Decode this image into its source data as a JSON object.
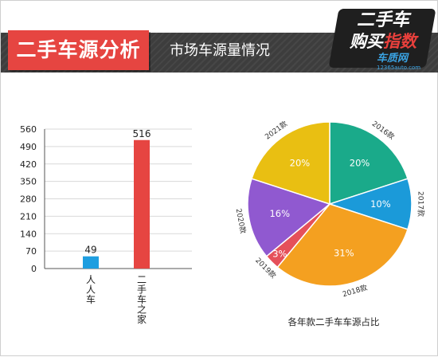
{
  "header": {
    "title": "二手车源分析",
    "subtitle": "市场车源量情况",
    "logo": {
      "line1": "二手车",
      "line2a": "购买",
      "line2b": "指数",
      "brand": "车质网",
      "site": "12365auto.com"
    }
  },
  "colors": {
    "header_band": "#3d3d3d",
    "title_box": "#e64541",
    "bar_renren": "#1e9ee0",
    "bar_esc": "#e64541"
  },
  "chart_data": [
    {
      "type": "bar",
      "categories": [
        "人人车",
        "二手车之家"
      ],
      "values": [
        49,
        516
      ],
      "colors": [
        "#1e9ee0",
        "#e64541"
      ],
      "yticks": [
        0,
        70,
        140,
        210,
        280,
        350,
        420,
        490,
        560
      ],
      "ylim": [
        0,
        560
      ],
      "grid": true,
      "data_labels": [
        "49",
        "516"
      ]
    },
    {
      "type": "pie",
      "caption": "各年款二手车车源占比",
      "slices": [
        {
          "label": "2016款",
          "percent": 20,
          "text": "20%",
          "color": "#1aaa8a"
        },
        {
          "label": "2017款",
          "percent": 10,
          "text": "10%",
          "color": "#1b9ad9"
        },
        {
          "label": "2018款",
          "percent": 31,
          "text": "31%",
          "color": "#f4a020"
        },
        {
          "label": "2019款",
          "percent": 3,
          "text": "3%",
          "color": "#e5505a"
        },
        {
          "label": "2020款",
          "percent": 16,
          "text": "16%",
          "color": "#9059d0"
        },
        {
          "label": "2021款",
          "percent": 20,
          "text": "20%",
          "color": "#e9bf12"
        }
      ]
    }
  ]
}
